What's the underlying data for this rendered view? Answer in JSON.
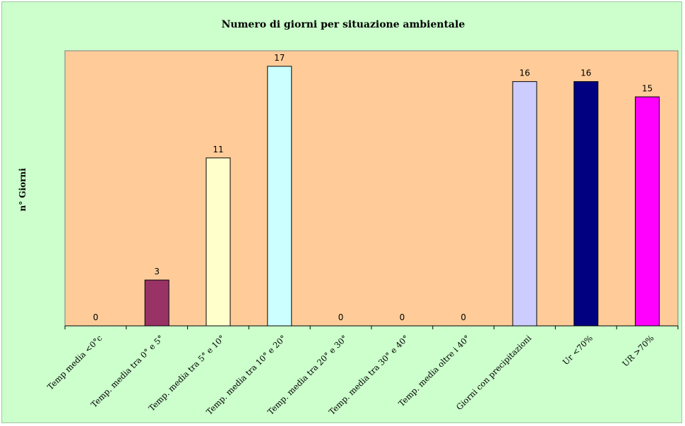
{
  "chart_data": {
    "type": "bar",
    "title": "Numero di giorni per situazione ambientale",
    "xlabel": "",
    "ylabel": "n° Giorni",
    "categories": [
      "Temp media <0°c",
      "Temp. media tra 0° e 5°",
      "Temp. media tra 5° e 10°",
      "Temp. media tra 10° e 20°",
      "Temp. media tra 20° e 30°",
      "Temp. media tra 30° e 40°",
      "Temp. media oltre i 40°",
      "Giorni con precipitazioni",
      "Ur <70%",
      "UR >70%"
    ],
    "values": [
      0,
      3,
      11,
      17,
      0,
      0,
      0,
      16,
      16,
      15
    ],
    "data_labels": [
      "0",
      "3",
      "11",
      "17",
      "0",
      "0",
      "0",
      "16",
      "16",
      "15"
    ],
    "bar_colors": [
      "#993366",
      "#993366",
      "#ffffcc",
      "#ccffff",
      "#993366",
      "#993366",
      "#993366",
      "#ccccff",
      "#000080",
      "#ff00ff"
    ],
    "ylim": [
      0,
      17
    ],
    "grid": false,
    "legend": "none",
    "background_color": "#ccffcc",
    "plot_area_color": "#ffcc99"
  }
}
